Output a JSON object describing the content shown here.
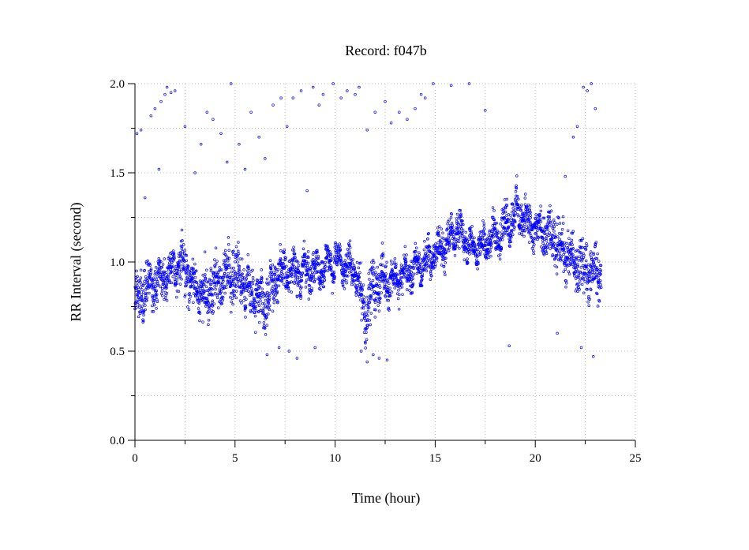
{
  "chart_data": {
    "type": "scatter",
    "title": "Record:  f047b",
    "xlabel": "Time (hour)",
    "ylabel": "RR Interval (second)",
    "xlim": [
      0,
      25
    ],
    "ylim": [
      0,
      2.0
    ],
    "x_major_ticks": [
      0,
      5,
      10,
      15,
      20,
      25
    ],
    "x_minor_ticks": [
      2.5,
      7.5,
      12.5,
      17.5,
      22.5
    ],
    "x_tick_labels": [
      "0",
      "5",
      "10",
      "15",
      "20",
      "25"
    ],
    "y_major_ticks": [
      0.0,
      0.5,
      1.0,
      1.5,
      2.0
    ],
    "y_minor_ticks": [
      0.25,
      0.75,
      1.25,
      1.75
    ],
    "y_tick_labels": [
      "0.0",
      "0.5",
      "1.0",
      "1.5",
      "2.0"
    ],
    "grid": true,
    "legend": "none",
    "marker": "open-circle",
    "colors": {
      "points": "#0000ff",
      "grid": "#b0b0b0",
      "axes": "#000000"
    },
    "series": [
      {
        "trend": {
          "x": [
            0,
            0.5,
            1,
            1.5,
            2,
            2.5,
            3,
            3.5,
            4,
            4.5,
            5,
            5.5,
            6,
            6.5,
            7,
            7.5,
            8,
            8.5,
            9,
            9.5,
            10,
            10.5,
            11,
            11.5,
            12,
            12.5,
            13,
            13.5,
            14,
            14.5,
            15,
            15.5,
            16,
            16.5,
            17,
            17.5,
            18,
            18.5,
            19,
            19.5,
            20,
            20.5,
            21,
            21.5,
            22,
            22.5,
            23,
            23.3
          ],
          "y": [
            0.78,
            0.85,
            0.88,
            0.92,
            0.95,
            0.98,
            0.85,
            0.8,
            0.88,
            0.92,
            0.95,
            0.85,
            0.82,
            0.78,
            0.9,
            0.95,
            0.92,
            0.96,
            0.95,
            0.98,
            1.0,
            0.98,
            0.95,
            0.72,
            0.88,
            0.9,
            0.9,
            0.93,
            0.96,
            1.0,
            1.05,
            1.1,
            1.18,
            1.12,
            1.07,
            1.1,
            1.15,
            1.2,
            1.28,
            1.25,
            1.18,
            1.15,
            1.12,
            1.05,
            0.98,
            0.97,
            0.95,
            0.93
          ],
          "spread": [
            0.16,
            0.14,
            0.12,
            0.12,
            0.12,
            0.14,
            0.14,
            0.16,
            0.14,
            0.14,
            0.16,
            0.14,
            0.14,
            0.16,
            0.14,
            0.12,
            0.14,
            0.12,
            0.12,
            0.1,
            0.1,
            0.1,
            0.1,
            0.16,
            0.14,
            0.12,
            0.1,
            0.1,
            0.1,
            0.1,
            0.1,
            0.12,
            0.1,
            0.1,
            0.08,
            0.1,
            0.1,
            0.12,
            0.12,
            0.12,
            0.12,
            0.14,
            0.14,
            0.14,
            0.16,
            0.16,
            0.14,
            0.14
          ]
        },
        "outliers": {
          "x": [
            0.1,
            0.3,
            0.5,
            0.8,
            1.0,
            1.2,
            1.3,
            1.5,
            1.6,
            1.8,
            2.0,
            2.5,
            3.0,
            3.3,
            3.6,
            3.9,
            4.3,
            4.6,
            4.8,
            5.2,
            5.5,
            5.8,
            6.2,
            6.5,
            6.9,
            7.3,
            7.6,
            7.9,
            8.3,
            8.6,
            8.9,
            9.2,
            9.4,
            9.9,
            10.3,
            10.6,
            11.0,
            11.2,
            11.6,
            12.0,
            12.5,
            12.8,
            13.2,
            13.6,
            14.0,
            14.3,
            14.5,
            14.9,
            15.8,
            16.7,
            17.5,
            21.5,
            21.9,
            22.1,
            22.4,
            22.6,
            22.8,
            23.0
          ],
          "y": [
            1.72,
            1.74,
            1.36,
            1.82,
            1.86,
            1.52,
            1.9,
            1.94,
            1.98,
            1.95,
            1.96,
            1.76,
            1.5,
            1.66,
            1.84,
            1.8,
            1.72,
            1.56,
            2.0,
            1.66,
            1.52,
            1.84,
            1.7,
            1.58,
            1.88,
            1.92,
            1.76,
            1.92,
            1.96,
            1.4,
            1.98,
            1.88,
            1.94,
            2.0,
            1.92,
            1.96,
            1.94,
            1.98,
            1.74,
            1.84,
            1.9,
            1.78,
            1.84,
            1.8,
            1.86,
            1.94,
            1.92,
            2.0,
            1.99,
            2.0,
            1.85,
            1.48,
            1.7,
            1.76,
            1.98,
            1.96,
            2.0,
            1.86
          ],
          "low_x": [
            6.6,
            7.2,
            7.7,
            8.1,
            9.0,
            11.3,
            11.6,
            11.9,
            12.2,
            12.6,
            18.7,
            21.1,
            22.3,
            22.9
          ],
          "low_y": [
            0.48,
            0.52,
            0.5,
            0.46,
            0.52,
            0.5,
            0.44,
            0.48,
            0.46,
            0.45,
            0.53,
            0.6,
            0.52,
            0.47
          ]
        }
      }
    ]
  }
}
